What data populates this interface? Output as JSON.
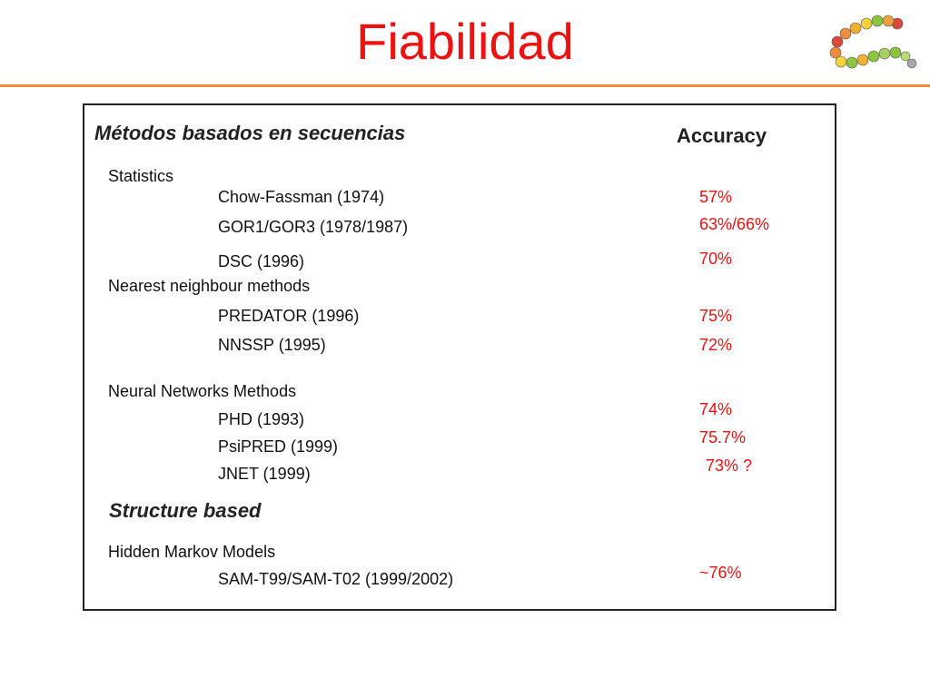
{
  "slide": {
    "title": "Fiabilidad",
    "logo_icon": "amino-acid-chain-logo"
  },
  "table": {
    "section1": "Métodos basados en secuencias",
    "accuracy_header": "Accuracy",
    "groups": [
      {
        "label": "Statistics",
        "methods": [
          {
            "name": "Chow-Fassman (1974)",
            "accuracy": "57%"
          },
          {
            "name": "GOR1/GOR3 (1978/1987)",
            "accuracy": "63%/66%"
          },
          {
            "name": "DSC (1996)",
            "accuracy": "70%"
          }
        ]
      },
      {
        "label": "Nearest neighbour methods",
        "methods": [
          {
            "name": "PREDATOR (1996)",
            "accuracy": "75%"
          },
          {
            "name": "NNSSP (1995)",
            "accuracy": "72%"
          }
        ]
      },
      {
        "label": "Neural Networks Methods",
        "methods": [
          {
            "name": "PHD (1993)",
            "accuracy": "74%"
          },
          {
            "name": "PsiPRED (1999)",
            "accuracy": "75.7%"
          },
          {
            "name": "JNET (1999)",
            "accuracy": "73% ?"
          }
        ]
      }
    ],
    "section2": "Structure based",
    "group4": {
      "label": "Hidden Markov Models",
      "methods": [
        {
          "name": "SAM-T99/SAM-T02 (1999/2002)",
          "accuracy": "~76%"
        }
      ]
    }
  },
  "colors": {
    "title": "#ee1111",
    "rule": "#f08c3c",
    "accuracy": "#ee1111"
  }
}
